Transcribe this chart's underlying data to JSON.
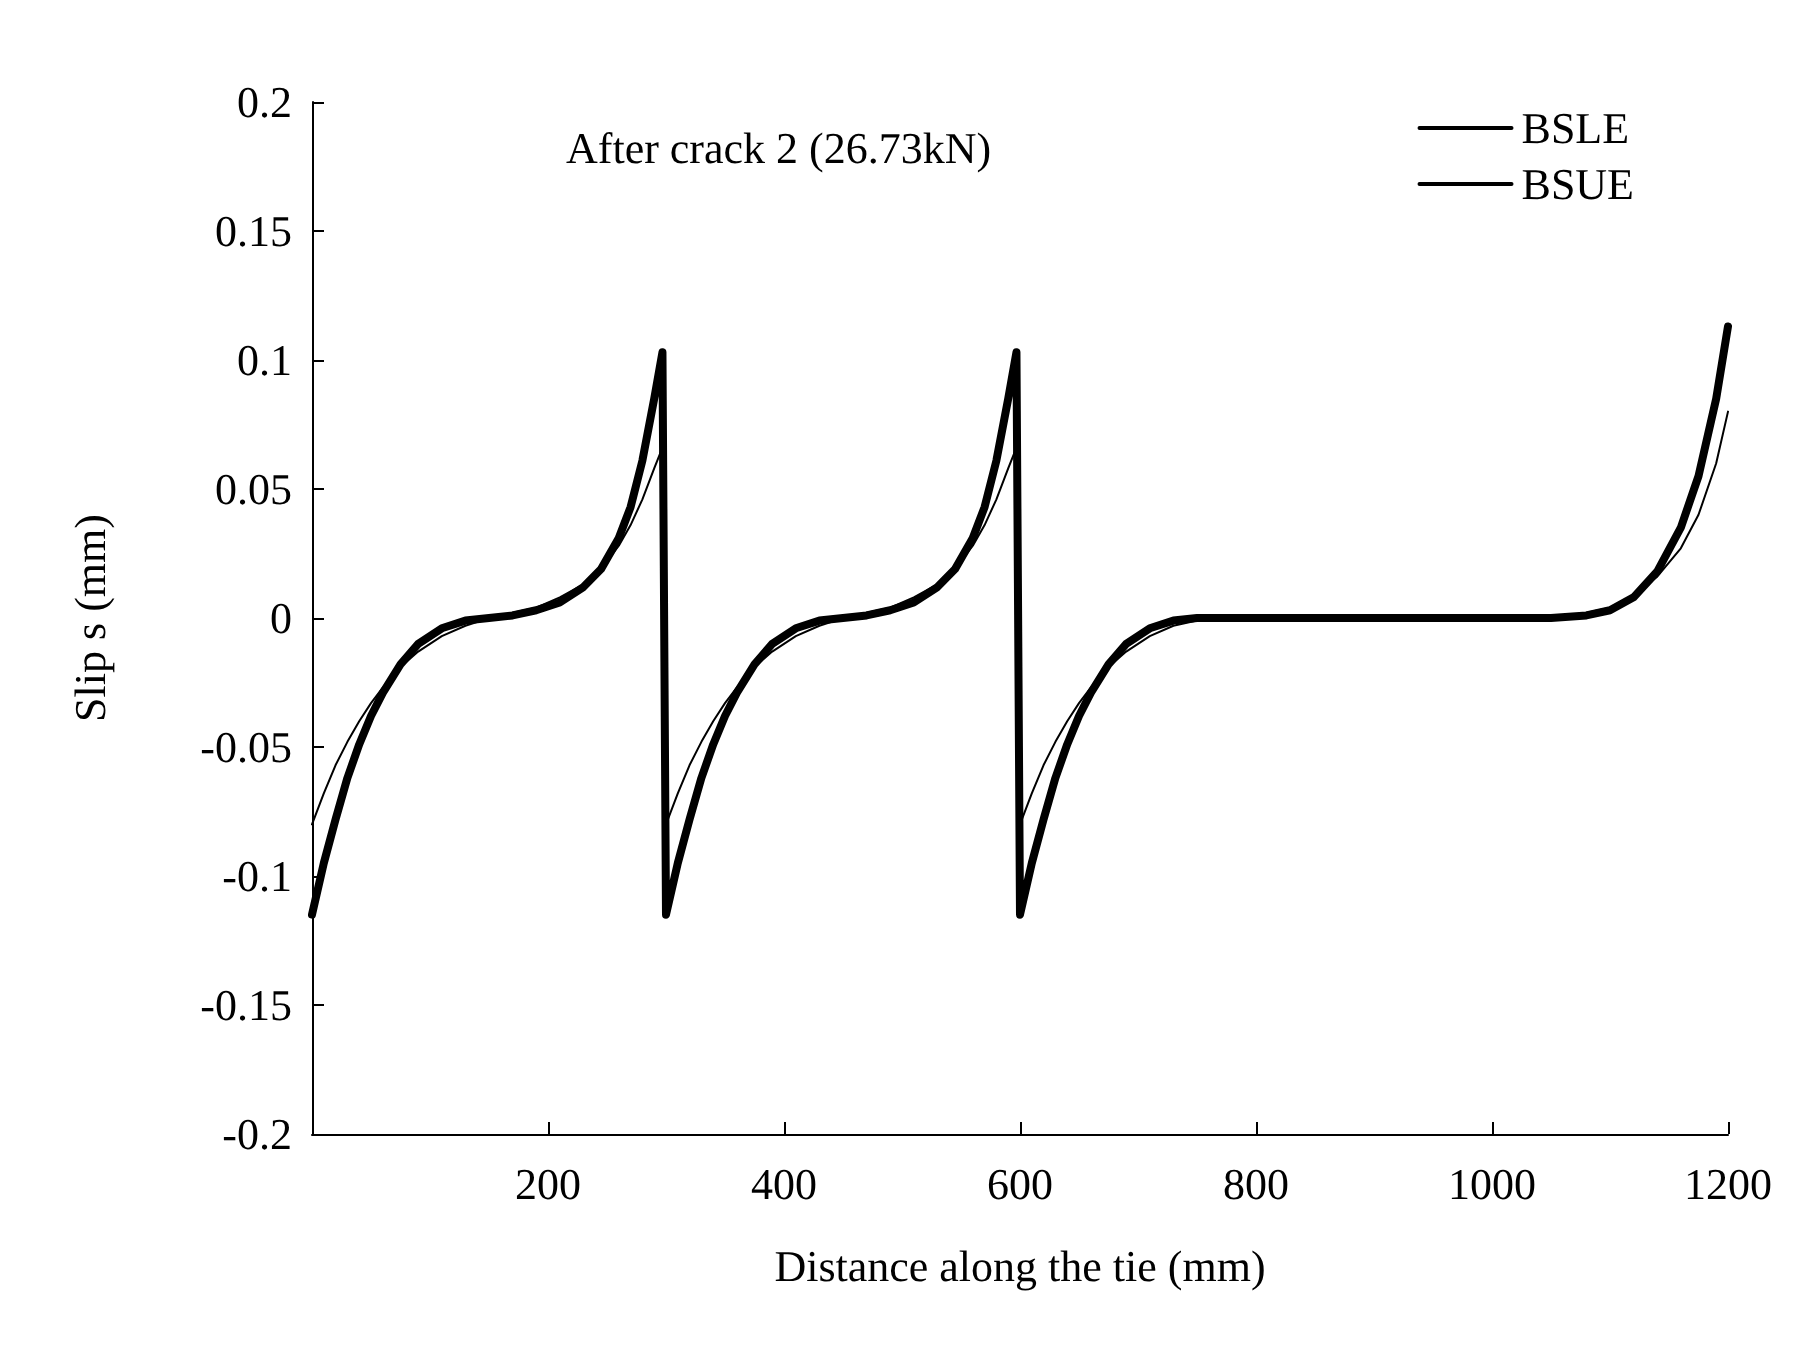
{
  "chart_data": {
    "type": "line",
    "title": "After crack 2 (26.73kN)",
    "xlabel": "Distance along the tie (mm)",
    "ylabel": "Slip s (mm)",
    "x": [
      0,
      10,
      20,
      30,
      40,
      50,
      60,
      75,
      90,
      110,
      130,
      150,
      170,
      190,
      210,
      230,
      245,
      260,
      270,
      280,
      290,
      297,
      300,
      310,
      320,
      330,
      340,
      350,
      360,
      375,
      390,
      410,
      430,
      450,
      470,
      490,
      510,
      530,
      545,
      560,
      570,
      580,
      590,
      597,
      600,
      610,
      620,
      630,
      640,
      650,
      660,
      675,
      690,
      710,
      730,
      750,
      800,
      900,
      1000,
      1050,
      1080,
      1100,
      1120,
      1140,
      1160,
      1175,
      1190,
      1200
    ],
    "series": [
      {
        "name": "BSLE",
        "color": "#000000",
        "values": [
          -0.115,
          -0.095,
          -0.078,
          -0.062,
          -0.049,
          -0.038,
          -0.029,
          -0.018,
          -0.01,
          -0.004,
          -0.001,
          0.0,
          0.001,
          0.003,
          0.006,
          0.012,
          0.019,
          0.031,
          0.043,
          0.061,
          0.085,
          0.103,
          -0.115,
          -0.095,
          -0.078,
          -0.062,
          -0.049,
          -0.038,
          -0.029,
          -0.018,
          -0.01,
          -0.004,
          -0.001,
          0.0,
          0.001,
          0.003,
          0.006,
          0.012,
          0.019,
          0.031,
          0.043,
          0.061,
          0.085,
          0.103,
          -0.115,
          -0.095,
          -0.078,
          -0.062,
          -0.049,
          -0.038,
          -0.029,
          -0.018,
          -0.01,
          -0.004,
          -0.001,
          0.0,
          0.0,
          0.0,
          0.0,
          0.0,
          0.001,
          0.003,
          0.008,
          0.018,
          0.035,
          0.055,
          0.085,
          0.113
        ]
      },
      {
        "name": "BSUE",
        "color": "#000000",
        "values": [
          -0.08,
          -0.068,
          -0.057,
          -0.048,
          -0.04,
          -0.033,
          -0.027,
          -0.019,
          -0.013,
          -0.007,
          -0.003,
          0.0,
          0.002,
          0.004,
          0.008,
          0.013,
          0.019,
          0.028,
          0.036,
          0.046,
          0.058,
          0.066,
          -0.08,
          -0.068,
          -0.057,
          -0.048,
          -0.04,
          -0.033,
          -0.027,
          -0.019,
          -0.013,
          -0.007,
          -0.003,
          0.0,
          0.002,
          0.004,
          0.008,
          0.013,
          0.019,
          0.028,
          0.036,
          0.046,
          0.058,
          0.066,
          -0.08,
          -0.068,
          -0.057,
          -0.048,
          -0.04,
          -0.033,
          -0.027,
          -0.019,
          -0.013,
          -0.007,
          -0.003,
          -0.001,
          0.0,
          0.0,
          0.0,
          0.0,
          0.002,
          0.004,
          0.009,
          0.016,
          0.027,
          0.04,
          0.06,
          0.08
        ]
      }
    ],
    "xlim": [
      0,
      1200
    ],
    "xticks": [
      200,
      400,
      600,
      800,
      1000,
      1200
    ],
    "ylim": [
      -0.2,
      0.2
    ],
    "yticks": [
      -0.2,
      -0.15,
      -0.1,
      -0.05,
      0,
      0.05,
      0.1,
      0.15,
      0.2
    ],
    "grid": false,
    "legend": "top right",
    "marker": "none",
    "line_style": "solid"
  }
}
